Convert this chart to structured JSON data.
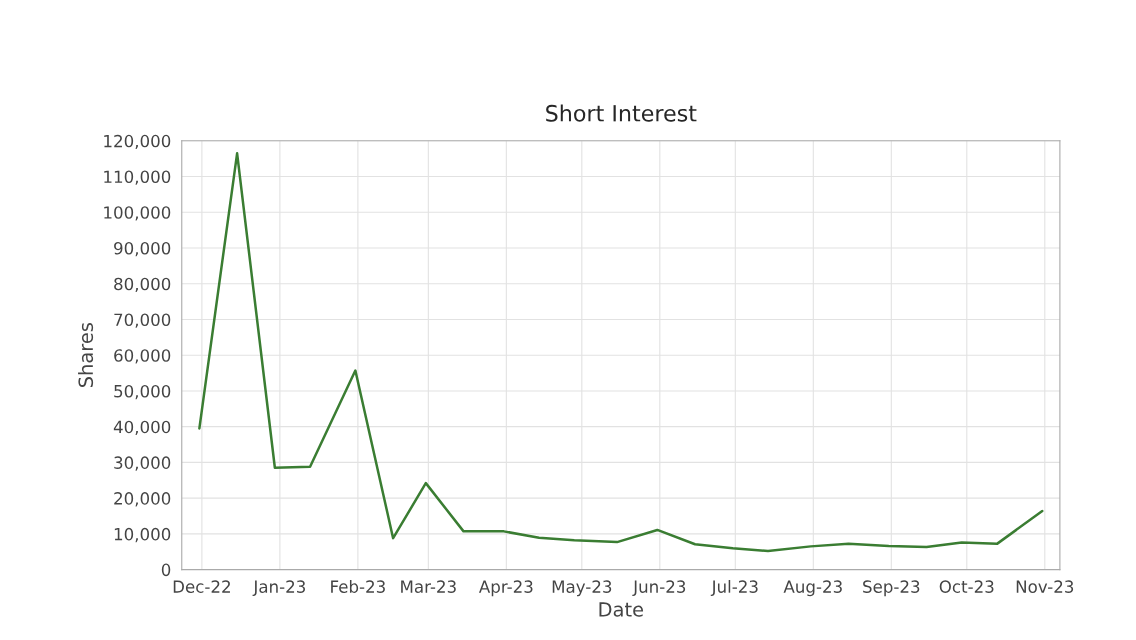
{
  "chart_data": {
    "type": "line",
    "title": "Short Interest",
    "xlabel": "Date",
    "ylabel": "Shares",
    "x": [
      "2022-11-30",
      "2022-12-15",
      "2022-12-30",
      "2023-01-13",
      "2023-01-31",
      "2023-02-15",
      "2023-02-28",
      "2023-03-15",
      "2023-03-31",
      "2023-04-14",
      "2023-04-28",
      "2023-05-15",
      "2023-05-31",
      "2023-06-15",
      "2023-06-30",
      "2023-07-14",
      "2023-07-31",
      "2023-08-15",
      "2023-08-31",
      "2023-09-15",
      "2023-09-29",
      "2023-10-13",
      "2023-10-31"
    ],
    "series": [
      {
        "color": "#3a7d32",
        "values": [
          39500,
          116500,
          28500,
          28800,
          55700,
          8800,
          24200,
          10700,
          10700,
          8900,
          8200,
          7700,
          11100,
          7100,
          6000,
          5200,
          6500,
          7200,
          6600,
          6300,
          7600,
          7200,
          16400
        ]
      }
    ],
    "xlim": [
      "2022-11-23",
      "2023-11-07"
    ],
    "xticks": [
      {
        "value": "2022-12-01",
        "label": "Dec-22"
      },
      {
        "value": "2023-01-01",
        "label": "Jan-23"
      },
      {
        "value": "2023-02-01",
        "label": "Feb-23"
      },
      {
        "value": "2023-03-01",
        "label": "Mar-23"
      },
      {
        "value": "2023-04-01",
        "label": "Apr-23"
      },
      {
        "value": "2023-05-01",
        "label": "May-23"
      },
      {
        "value": "2023-06-01",
        "label": "Jun-23"
      },
      {
        "value": "2023-07-01",
        "label": "Jul-23"
      },
      {
        "value": "2023-08-01",
        "label": "Aug-23"
      },
      {
        "value": "2023-09-01",
        "label": "Sep-23"
      },
      {
        "value": "2023-10-01",
        "label": "Oct-23"
      },
      {
        "value": "2023-11-01",
        "label": "Nov-23"
      }
    ],
    "ylim": [
      0,
      120000
    ],
    "yticks": [
      {
        "value": 0,
        "label": "0"
      },
      {
        "value": 10000,
        "label": "10,000"
      },
      {
        "value": 20000,
        "label": "20,000"
      },
      {
        "value": 30000,
        "label": "30,000"
      },
      {
        "value": 40000,
        "label": "40,000"
      },
      {
        "value": 50000,
        "label": "50,000"
      },
      {
        "value": 60000,
        "label": "60,000"
      },
      {
        "value": 70000,
        "label": "70,000"
      },
      {
        "value": 80000,
        "label": "80,000"
      },
      {
        "value": 90000,
        "label": "90,000"
      },
      {
        "value": 100000,
        "label": "100,000"
      },
      {
        "value": 110000,
        "label": "110,000"
      },
      {
        "value": 120000,
        "label": "120,000"
      }
    ],
    "grid": true,
    "marker": "none",
    "line_style": "solid"
  }
}
